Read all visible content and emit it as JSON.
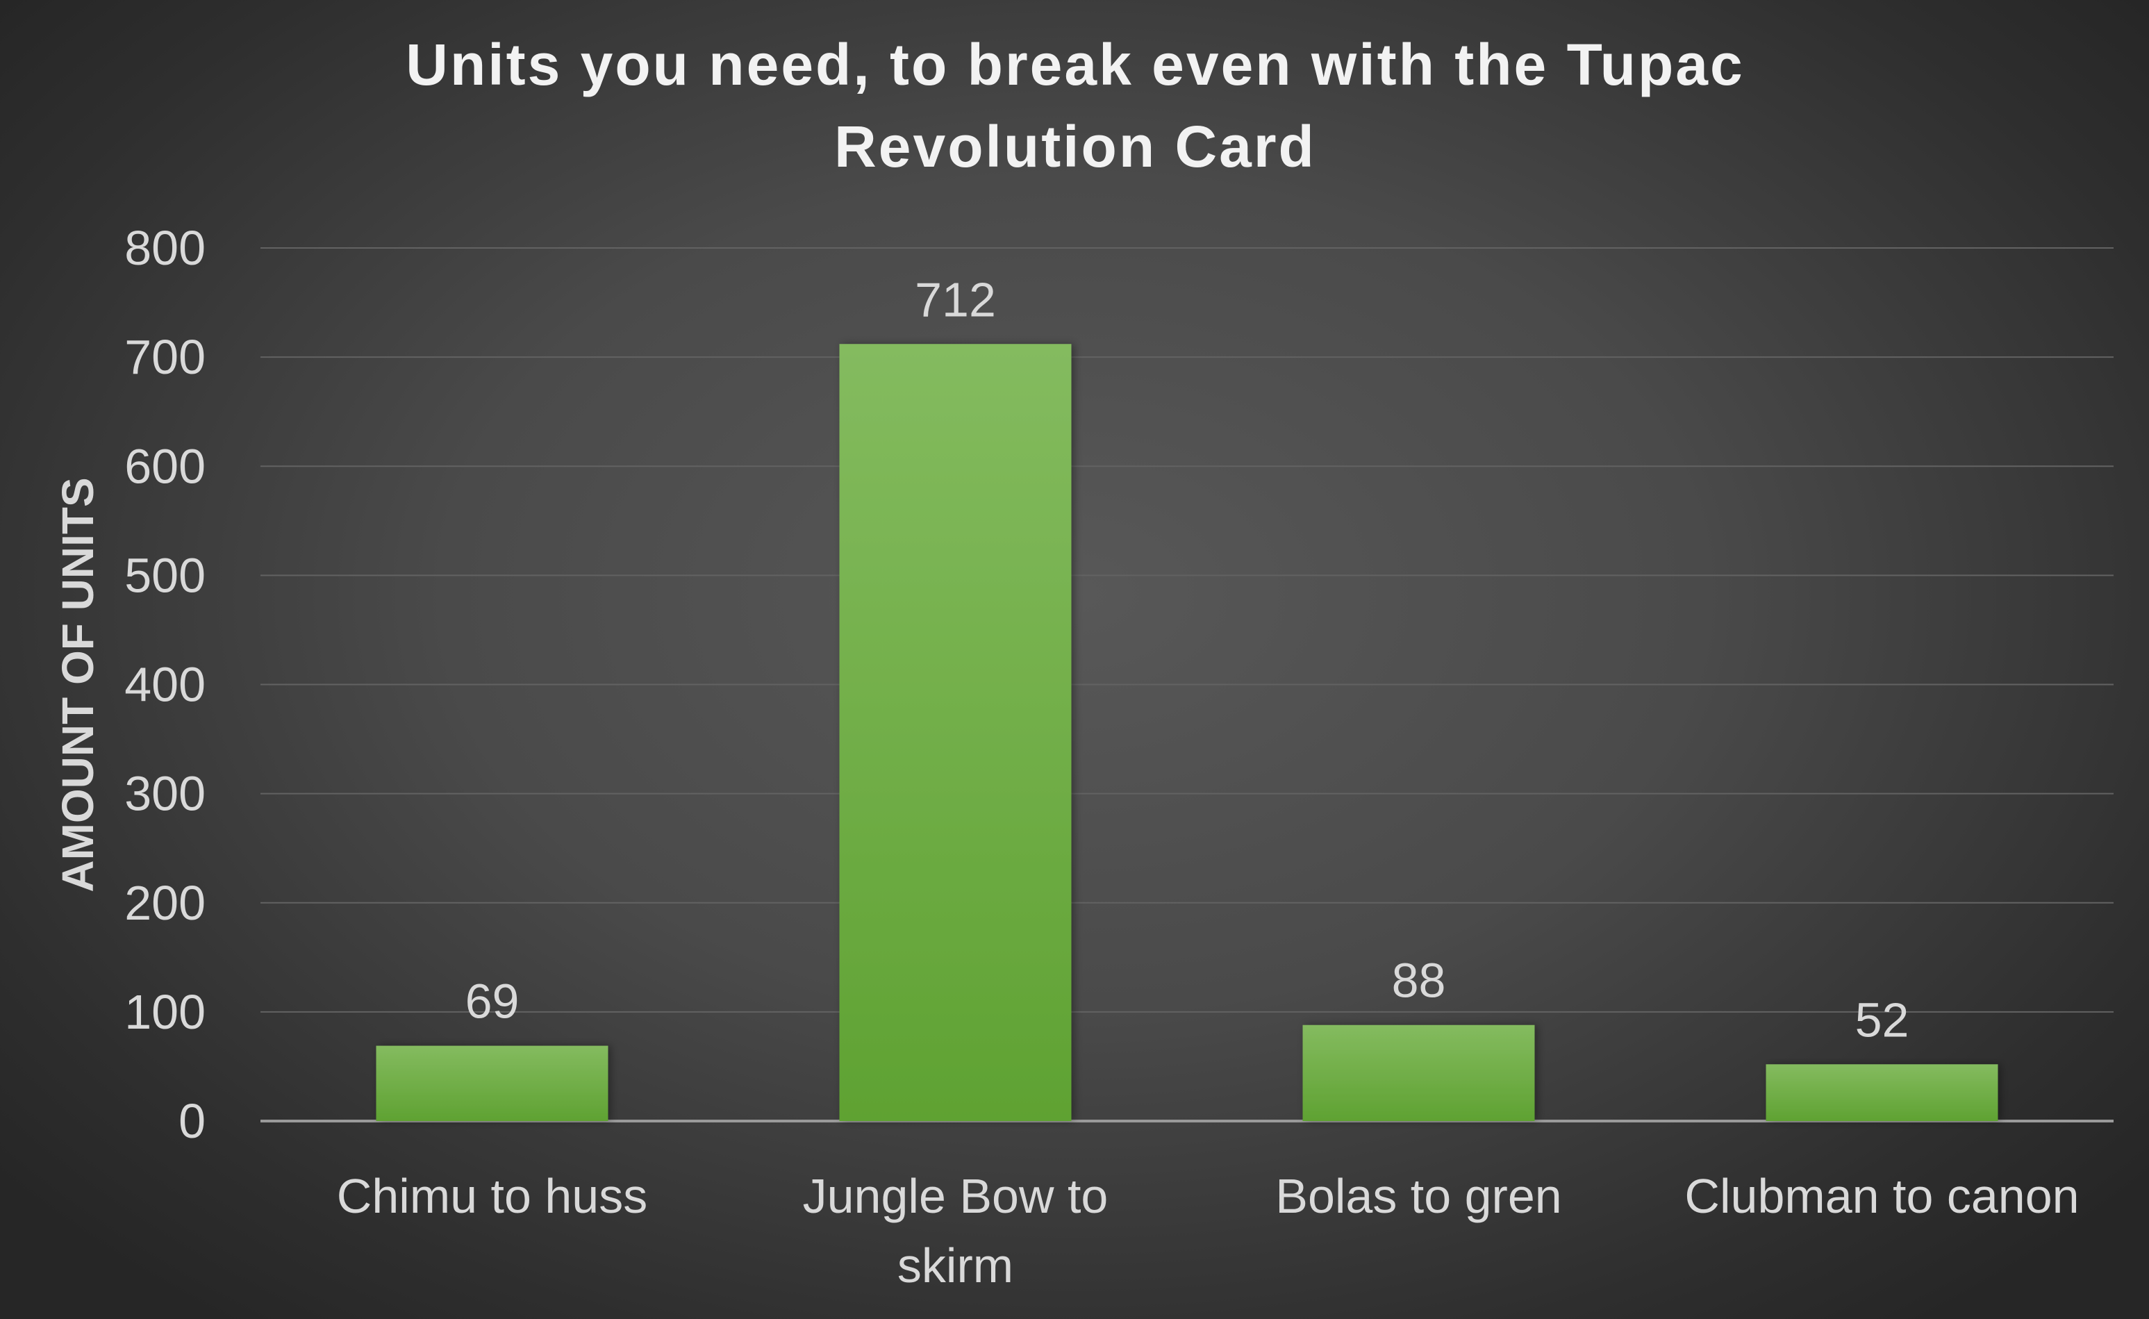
{
  "chart_data": {
    "type": "bar",
    "title": "Units you need, to break even with the Tupac Revolution Card",
    "title_lines": [
      "Units you need, to break even with the Tupac",
      "Revolution Card"
    ],
    "xlabel": "",
    "ylabel": "AMOUNT OF UNITS",
    "categories": [
      "Chimu to huss",
      "Jungle Bow to skirm",
      "Bolas to gren",
      "Clubman to canon"
    ],
    "category_lines": [
      [
        "Chimu to huss"
      ],
      [
        "Jungle Bow to",
        "skirm"
      ],
      [
        "Bolas to gren"
      ],
      [
        "Clubman to canon"
      ]
    ],
    "values": [
      69,
      712,
      88,
      52
    ],
    "data_labels": [
      "69",
      "712",
      "88",
      "52"
    ],
    "ylim": [
      0,
      800
    ],
    "yticks": [
      0,
      100,
      200,
      300,
      400,
      500,
      600,
      700,
      800
    ],
    "ytick_labels": [
      "0",
      "100",
      "200",
      "300",
      "400",
      "500",
      "600",
      "700",
      "800"
    ],
    "grid": true,
    "legend": "none",
    "colors": {
      "bar_top": "#84bb5f",
      "bar_bottom": "#5fa232",
      "background": "#4a4a4a",
      "text": "#d9d9d9",
      "title": "#f2f2f2"
    }
  }
}
